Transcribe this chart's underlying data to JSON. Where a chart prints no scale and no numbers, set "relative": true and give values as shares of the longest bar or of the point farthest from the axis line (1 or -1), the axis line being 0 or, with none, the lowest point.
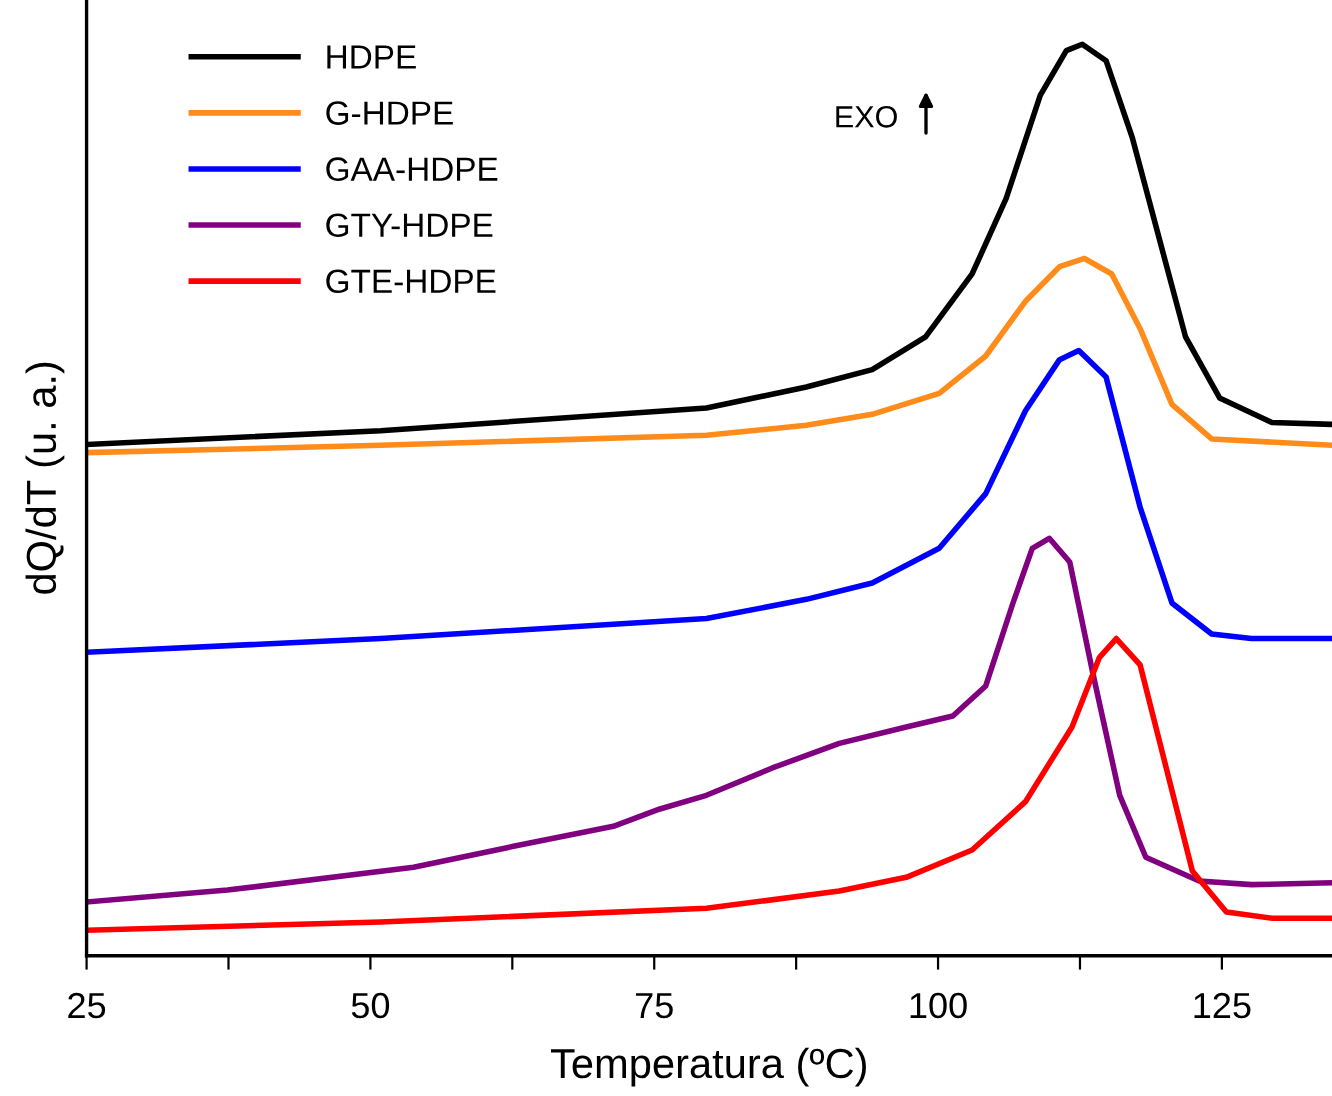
{
  "chart_data": {
    "type": "line",
    "xlabel": "Temperatura (ºC)",
    "ylabel": "dQ/dT (u. a.)",
    "relative": true,
    "xlim": [
      25,
      134.7
    ],
    "xticks": [
      25,
      {
        "value": 37.5,
        "label": null
      },
      50,
      {
        "value": 62.5,
        "label": null
      },
      75,
      {
        "value": 87.5,
        "label": null
      },
      100,
      {
        "value": 112.5,
        "label": null
      },
      125
    ],
    "legend": "top left",
    "grid": false,
    "marker": "none",
    "line_style": "solid",
    "annotations": [
      "EXO"
    ],
    "series": [
      {
        "name": "HDPE",
        "color": "#000000",
        "x": [
          25.05,
          50.9,
          79.6,
          88.4,
          94.2,
          98.9,
          103.0,
          106.0,
          109.0,
          111.3,
          112.7,
          114.8,
          117.1,
          119.5,
          121.8,
          124.8,
          129.4,
          134.7
        ],
        "values": [
          0.561,
          0.576,
          0.601,
          0.624,
          0.643,
          0.679,
          0.748,
          0.831,
          0.944,
          0.993,
          1,
          0.982,
          0.898,
          0.786,
          0.679,
          0.612,
          0.585,
          0.583
        ]
      },
      {
        "name": "G-HDPE",
        "color": "#ff8c1a",
        "x": [
          25.05,
          50.9,
          79.6,
          88.4,
          94.2,
          100.1,
          104.2,
          107.7,
          110.7,
          112.9,
          115.3,
          117.8,
          120.6,
          124.1,
          134.7
        ],
        "values": [
          0.552,
          0.56,
          0.571,
          0.582,
          0.594,
          0.617,
          0.658,
          0.718,
          0.756,
          0.765,
          0.748,
          0.688,
          0.605,
          0.567,
          0.56
        ]
      },
      {
        "name": "GAA-HDPE",
        "color": "#0000ff",
        "x": [
          25.05,
          50.9,
          79.6,
          88.4,
          94.2,
          100.1,
          104.2,
          107.7,
          110.7,
          112.4,
          114.8,
          117.8,
          120.6,
          124.1,
          127.6,
          134.7
        ],
        "values": [
          0.333,
          0.348,
          0.37,
          0.391,
          0.409,
          0.447,
          0.507,
          0.598,
          0.654,
          0.664,
          0.635,
          0.492,
          0.387,
          0.353,
          0.348,
          0.348
        ]
      },
      {
        "name": "GTY-HDPE",
        "color": "#800080",
        "x": [
          25.05,
          37.4,
          53.8,
          62.6,
          71.4,
          75.5,
          79.6,
          85.4,
          91.3,
          97.2,
          101.3,
          104.2,
          106.6,
          108.3,
          109.8,
          111.6,
          113.6,
          116.0,
          118.3,
          123.0,
          127.6,
          134.7
        ],
        "values": [
          0.059,
          0.072,
          0.097,
          0.12,
          0.142,
          0.161,
          0.176,
          0.206,
          0.233,
          0.251,
          0.263,
          0.296,
          0.387,
          0.447,
          0.458,
          0.432,
          0.312,
          0.176,
          0.108,
          0.082,
          0.078,
          0.08
        ]
      },
      {
        "name": "GTE-HDPE",
        "color": "#ff0000",
        "x": [
          25.05,
          50.9,
          79.6,
          91.3,
          97.2,
          103.0,
          107.7,
          111.8,
          114.2,
          115.7,
          117.8,
          120.1,
          122.4,
          125.4,
          129.5,
          134.7
        ],
        "values": [
          0.028,
          0.037,
          0.052,
          0.071,
          0.086,
          0.116,
          0.169,
          0.251,
          0.327,
          0.348,
          0.319,
          0.206,
          0.093,
          0.048,
          0.041,
          0.041
        ]
      }
    ]
  }
}
